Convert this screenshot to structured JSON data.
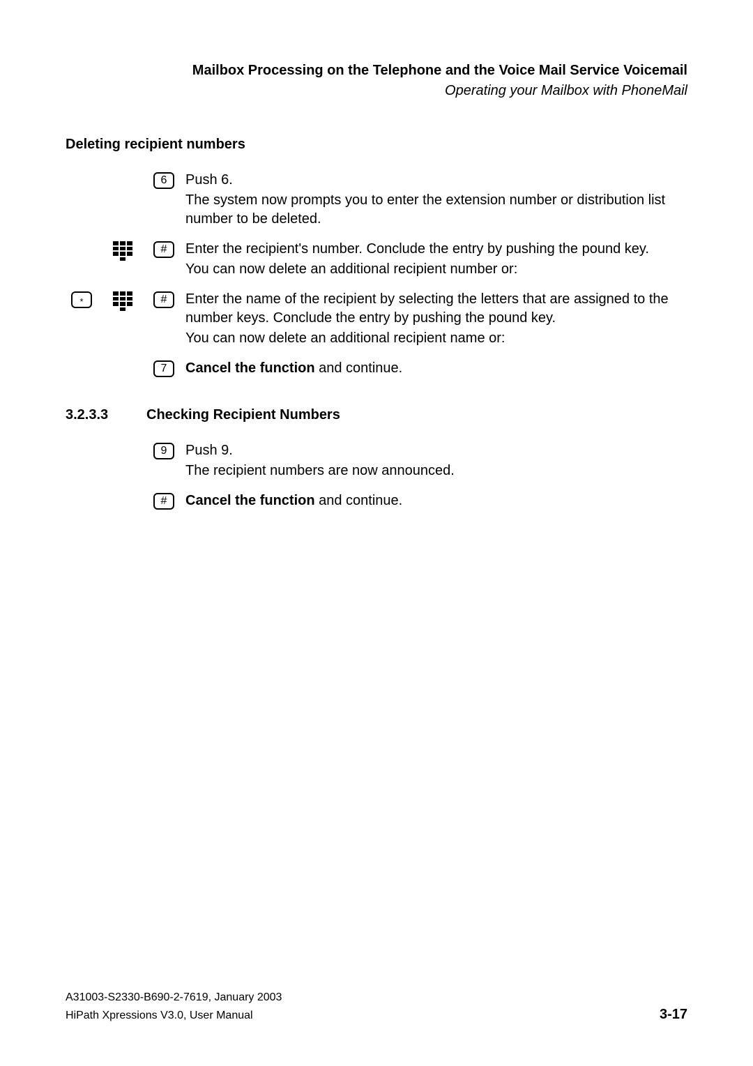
{
  "header": {
    "title": "Mailbox Processing on the Telephone and the Voice Mail Service Voicemail",
    "subtitle": "Operating your Mailbox with PhoneMail"
  },
  "section1": {
    "heading": "Deleting recipient numbers",
    "steps": [
      {
        "key": "6",
        "line1": "Push 6.",
        "line2": "The system now prompts you to enter the extension number or distribution list number to be deleted."
      },
      {
        "keypad": true,
        "key": "#",
        "line1": "Enter the recipient's number. Conclude the entry by pushing the pound key.",
        "line2": "You can now delete an additional recipient number or:"
      },
      {
        "star": true,
        "keypad": true,
        "key": "#",
        "line1": "Enter the name of the recipient by selecting the letters that are assigned to the number keys. Conclude the entry by pushing the pound key.",
        "line2": "You can now delete an additional recipient name or:"
      },
      {
        "key": "7",
        "bold": "Cancel the function",
        "rest": " and continue."
      }
    ]
  },
  "section2": {
    "number": "3.2.3.3",
    "title": "Checking Recipient Numbers",
    "steps": [
      {
        "key": "9",
        "line1": "Push 9.",
        "line2": "The recipient numbers are now announced."
      },
      {
        "key": "#",
        "bold": "Cancel the function",
        "rest": " and continue."
      }
    ]
  },
  "footer": {
    "line1": "A31003-S2330-B690-2-7619, January 2003",
    "line2": "HiPath Xpressions V3.0, User Manual",
    "page": "3-17"
  }
}
